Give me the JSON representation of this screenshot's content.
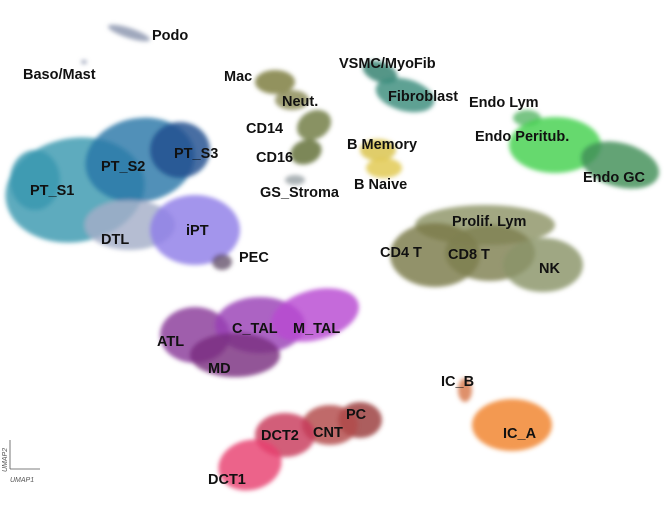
{
  "chart_data": {
    "type": "scatter",
    "title": "",
    "xlabel": "UMAP1",
    "ylabel": "UMAP2",
    "grid": false,
    "legend": "none",
    "clusters": [
      {
        "label": "Podo",
        "color": "#8a94ad"
      },
      {
        "label": "Baso/Mast",
        "color": "#2f8a7a"
      },
      {
        "label": "Mac",
        "color": "#7a7a3a"
      },
      {
        "label": "Neut.",
        "color": "#8a8a55"
      },
      {
        "label": "CD14",
        "color": "#6f7a40"
      },
      {
        "label": "CD16",
        "color": "#5f6e34"
      },
      {
        "label": "GS_Stroma",
        "color": "#9aa2a6"
      },
      {
        "label": "VSMC/MyoFib",
        "color": "#2f7f6e"
      },
      {
        "label": "Fibroblast",
        "color": "#3a8c7c"
      },
      {
        "label": "B Memory",
        "color": "#d9c24a"
      },
      {
        "label": "B Naive",
        "color": "#e0c84e"
      },
      {
        "label": "Endo Lym",
        "color": "#5ab86a"
      },
      {
        "label": "Endo Peritub.",
        "color": "#44d14e"
      },
      {
        "label": "Endo GC",
        "color": "#3f8f58"
      },
      {
        "label": "PT_S1",
        "color": "#3a98b0"
      },
      {
        "label": "PT_S2",
        "color": "#2a78a8"
      },
      {
        "label": "PT_S3",
        "color": "#1f4f8f"
      },
      {
        "label": "DTL",
        "color": "#a5aec8"
      },
      {
        "label": "iPT",
        "color": "#8f7ee8"
      },
      {
        "label": "PEC",
        "color": "#6a5870"
      },
      {
        "label": "Prolif. Lym",
        "color": "#8d9466"
      },
      {
        "label": "CD4 T",
        "color": "#7a7a48"
      },
      {
        "label": "CD8 T",
        "color": "#7f8050"
      },
      {
        "label": "NK",
        "color": "#8a9468"
      },
      {
        "label": "ATL",
        "color": "#8a3a9a"
      },
      {
        "label": "C_TAL",
        "color": "#9a40b6"
      },
      {
        "label": "M_TAL",
        "color": "#b84ad2"
      },
      {
        "label": "MD",
        "color": "#7a2f80"
      },
      {
        "label": "IC_B",
        "color": "#d8784a"
      },
      {
        "label": "IC_A",
        "color": "#f0822c"
      },
      {
        "label": "PC",
        "color": "#9a3a3a"
      },
      {
        "label": "CNT",
        "color": "#b24a4a"
      },
      {
        "label": "DCT2",
        "color": "#c83a5a"
      },
      {
        "label": "DCT1",
        "color": "#e83f70"
      }
    ]
  }
}
